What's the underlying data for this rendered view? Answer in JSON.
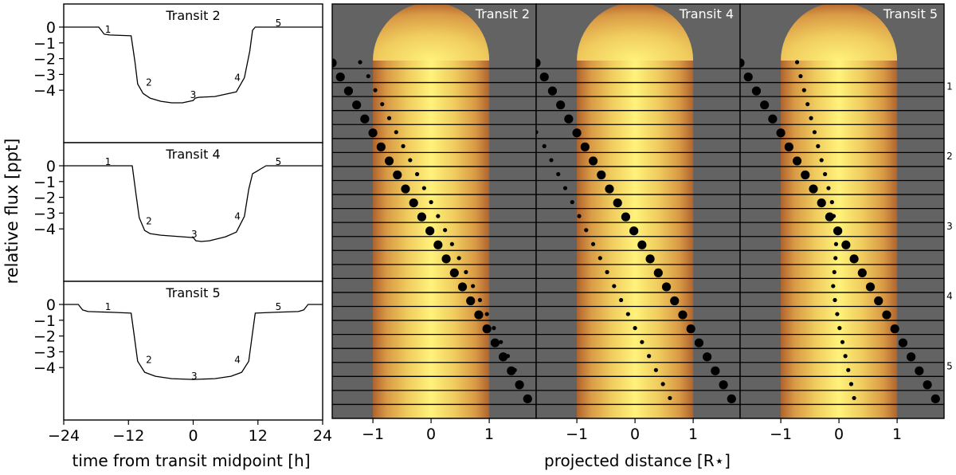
{
  "chart_data": [
    {
      "type": "line",
      "ylabel": "relative flux [ppt]",
      "xlabel": "time from transit midpoint [h]",
      "xlim": [
        -24,
        24
      ],
      "ylim": [
        -5,
        1
      ],
      "x_ticks": [
        -24,
        -12,
        0,
        12,
        24
      ],
      "x_tick_labels": [
        "−24",
        "−12",
        "0",
        "12",
        "24"
      ],
      "y_ticks": [
        0,
        -1,
        -2,
        -3,
        -4
      ],
      "y_tick_labels": [
        "0",
        "−1",
        "−2",
        "−3",
        "−4"
      ],
      "grid": false,
      "panels": [
        {
          "title": "Transit 2",
          "series": [
            {
              "x": [
                -24,
                -17.5,
                -16.5,
                -15.5,
                -11.5,
                -10.8,
                -10.3,
                -9.3,
                -8,
                -6,
                -4,
                -2,
                0,
                0.4,
                1,
                4,
                8,
                9.5,
                10.5,
                11,
                11.5,
                24
              ],
              "y": [
                0,
                0,
                -0.45,
                -0.5,
                -0.55,
                -2.2,
                -3.6,
                -4.2,
                -4.5,
                -4.7,
                -4.8,
                -4.8,
                -4.65,
                -4.5,
                -4.45,
                -4.4,
                -4.1,
                -3.2,
                -1.5,
                -0.2,
                0,
                0
              ]
            }
          ],
          "annotations": [
            {
              "text": "1",
              "x": -15.8,
              "y": -0.15
            },
            {
              "text": "2",
              "x": -8.2,
              "y": -3.5
            },
            {
              "text": "3",
              "x": 0,
              "y": -4.3
            },
            {
              "text": "4",
              "x": 8.2,
              "y": -3.2
            },
            {
              "text": "5",
              "x": 15.8,
              "y": 0.25
            }
          ]
        },
        {
          "title": "Transit 4",
          "series": [
            {
              "x": [
                -24,
                -11.3,
                -10.6,
                -10,
                -9,
                -8,
                -6,
                -4,
                -2,
                0,
                0.5,
                1.5,
                3,
                6,
                8,
                9.5,
                10.3,
                11,
                11.8,
                12.5,
                13.5,
                24
              ],
              "y": [
                0,
                0,
                -1.8,
                -3.3,
                -4.1,
                -4.3,
                -4.4,
                -4.45,
                -4.5,
                -4.55,
                -4.75,
                -4.8,
                -4.75,
                -4.5,
                -4.2,
                -3.2,
                -1.5,
                -0.5,
                -0.35,
                -0.2,
                0,
                0
              ]
            }
          ],
          "annotations": [
            {
              "text": "1",
              "x": -15.8,
              "y": 0.25
            },
            {
              "text": "2",
              "x": -8.2,
              "y": -3.5
            },
            {
              "text": "3",
              "x": 0.2,
              "y": -4.35
            },
            {
              "text": "4",
              "x": 8.2,
              "y": -3.2
            },
            {
              "text": "5",
              "x": 15.8,
              "y": 0.25
            }
          ]
        },
        {
          "title": "Transit 5",
          "series": [
            {
              "x": [
                -24,
                -21.3,
                -20.5,
                -19.5,
                -15,
                -11.5,
                -11,
                -10.3,
                -9,
                -7,
                -4,
                0,
                4,
                7,
                9,
                10.3,
                11,
                11.5,
                15,
                19.5,
                20.5,
                21.3,
                24
              ],
              "y": [
                0,
                0,
                -0.35,
                -0.45,
                -0.5,
                -0.55,
                -1.8,
                -3.6,
                -4.3,
                -4.55,
                -4.7,
                -4.75,
                -4.7,
                -4.55,
                -4.3,
                -3.6,
                -1.8,
                -0.55,
                -0.5,
                -0.45,
                -0.35,
                0,
                0
              ]
            }
          ],
          "annotations": [
            {
              "text": "1",
              "x": -15.8,
              "y": -0.15
            },
            {
              "text": "2",
              "x": -8.2,
              "y": -3.5
            },
            {
              "text": "3",
              "x": 0.2,
              "y": -4.55
            },
            {
              "text": "4",
              "x": 8.2,
              "y": -3.5
            },
            {
              "text": "5",
              "x": 15.8,
              "y": -0.15
            }
          ]
        }
      ]
    },
    {
      "type": "scatter",
      "xlabel": "projected distance [R⋆]",
      "xlim": [
        -1.7,
        1.75
      ],
      "x_ticks": [
        -1,
        0,
        1
      ],
      "x_tick_labels": [
        "−1",
        "0",
        "1"
      ],
      "colors": {
        "background": "#636363",
        "star_center": "#fff27a",
        "star_limb": "#b0642e",
        "planet": "#000000"
      },
      "row_labels": [
        {
          "text": "1",
          "row": 1.5
        },
        {
          "text": "2",
          "row": 6.5
        },
        {
          "text": "3",
          "row": 11.5
        },
        {
          "text": "4",
          "row": 16.5
        },
        {
          "text": "5",
          "row": 21.5
        }
      ],
      "n_rows": 25,
      "panels": [
        {
          "title": "Transit 2",
          "large_planet_x": [
            -1.7,
            -1.56,
            -1.42,
            -1.28,
            -1.14,
            -1.0,
            -0.86,
            -0.72,
            -0.58,
            -0.44,
            -0.3,
            -0.16,
            -0.02,
            0.12,
            0.26,
            0.4,
            0.54,
            0.68,
            0.82,
            0.96,
            1.1,
            1.24,
            1.38,
            1.52,
            1.66
          ],
          "small_planet_x": [
            -1.22,
            -1.08,
            -0.96,
            -0.84,
            -0.72,
            -0.6,
            -0.48,
            -0.36,
            -0.24,
            -0.12,
            0.0,
            0.12,
            0.24,
            0.36,
            0.48,
            0.6,
            0.72,
            0.84,
            0.96,
            1.08,
            1.2,
            1.32,
            1.44,
            1.56,
            1.68
          ]
        },
        {
          "title": "Transit 4",
          "large_planet_x": [
            -1.7,
            -1.56,
            -1.42,
            -1.28,
            -1.14,
            -1.0,
            -0.86,
            -0.72,
            -0.58,
            -0.44,
            -0.3,
            -0.16,
            -0.02,
            0.12,
            0.26,
            0.4,
            0.54,
            0.68,
            0.82,
            0.96,
            1.1,
            1.24,
            1.38,
            1.52,
            1.66
          ],
          "small_planet_x": [
            -2.4,
            -2.26,
            -2.12,
            -1.98,
            -1.84,
            -1.7,
            -1.56,
            -1.44,
            -1.32,
            -1.2,
            -1.08,
            -0.96,
            -0.84,
            -0.72,
            -0.6,
            -0.48,
            -0.36,
            -0.24,
            -0.12,
            0.0,
            0.12,
            0.24,
            0.36,
            0.48,
            0.6
          ]
        },
        {
          "title": "Transit 5",
          "large_planet_x": [
            -1.7,
            -1.56,
            -1.42,
            -1.28,
            -1.14,
            -1.0,
            -0.86,
            -0.72,
            -0.58,
            -0.44,
            -0.3,
            -0.16,
            -0.02,
            0.12,
            0.26,
            0.4,
            0.54,
            0.68,
            0.82,
            0.96,
            1.1,
            1.24,
            1.38,
            1.52,
            1.66
          ],
          "small_planet_x": [
            -0.72,
            -0.66,
            -0.6,
            -0.54,
            -0.48,
            -0.42,
            -0.36,
            -0.3,
            -0.24,
            -0.18,
            -0.12,
            -0.09,
            -0.06,
            -0.05,
            -0.06,
            -0.08,
            -0.1,
            -0.07,
            -0.03,
            0.01,
            0.06,
            0.11,
            0.16,
            0.21,
            0.26
          ]
        }
      ]
    }
  ]
}
